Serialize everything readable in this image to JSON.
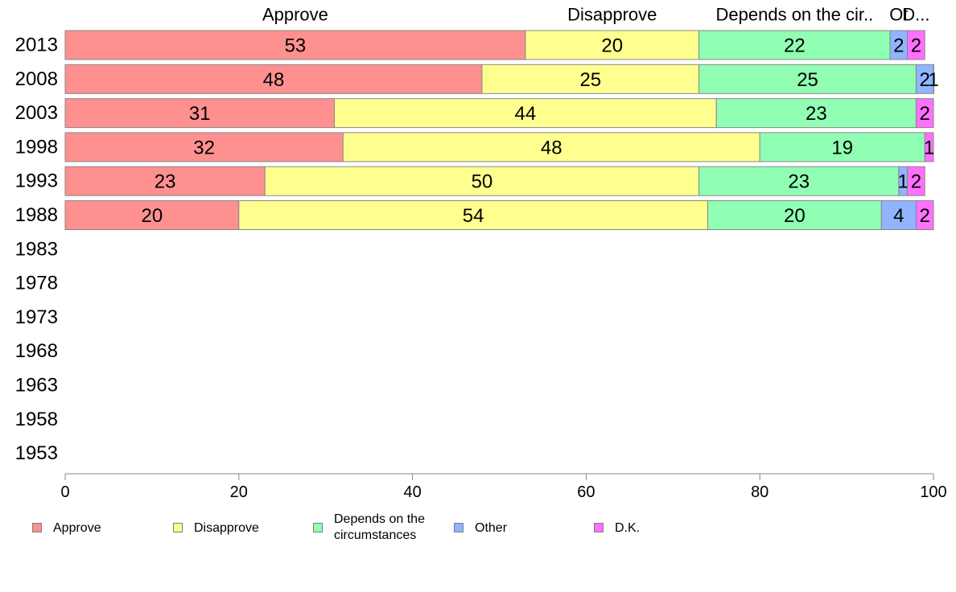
{
  "chart_data": {
    "type": "bar",
    "orientation": "horizontal",
    "stacked": true,
    "categories": [
      "2013",
      "2008",
      "2003",
      "1998",
      "1993",
      "1988",
      "1983",
      "1978",
      "1973",
      "1968",
      "1963",
      "1958",
      "1953"
    ],
    "series": [
      {
        "name": "Approve",
        "color": "#ff9090",
        "values": [
          53,
          48,
          31,
          32,
          23,
          20,
          null,
          null,
          null,
          null,
          null,
          null,
          null
        ]
      },
      {
        "name": "Disapprove",
        "color": "#ffff90",
        "values": [
          20,
          25,
          44,
          48,
          50,
          54,
          null,
          null,
          null,
          null,
          null,
          null,
          null
        ]
      },
      {
        "name": "Depends on the circumstances",
        "color": "#90ffb4",
        "values": [
          22,
          25,
          23,
          19,
          23,
          20,
          null,
          null,
          null,
          null,
          null,
          null,
          null
        ]
      },
      {
        "name": "Other",
        "color": "#90b4ff",
        "values": [
          2,
          2,
          0,
          0,
          1,
          4,
          null,
          null,
          null,
          null,
          null,
          null,
          null
        ]
      },
      {
        "name": "D.K.",
        "color": "#ff70ff",
        "values": [
          2,
          1,
          2,
          1,
          2,
          2,
          null,
          null,
          null,
          null,
          null,
          null,
          null
        ]
      }
    ],
    "top_labels": [
      "Approve",
      "Disapprove",
      "Depends on the cir..",
      "Ot",
      "D..."
    ],
    "xlim": [
      0,
      100
    ],
    "xticks": [
      0,
      20,
      40,
      60,
      80,
      100
    ],
    "grid": false,
    "legend_position": "bottom"
  },
  "legend": {
    "items": [
      {
        "label": "Approve",
        "color": "#ff9090"
      },
      {
        "label": "Disapprove",
        "color": "#ffff90"
      },
      {
        "label": "Depends on the circumstances",
        "color": "#90ffb4"
      },
      {
        "label": "Other",
        "color": "#90b4ff"
      },
      {
        "label": "D.K.",
        "color": "#ff70ff"
      }
    ]
  }
}
